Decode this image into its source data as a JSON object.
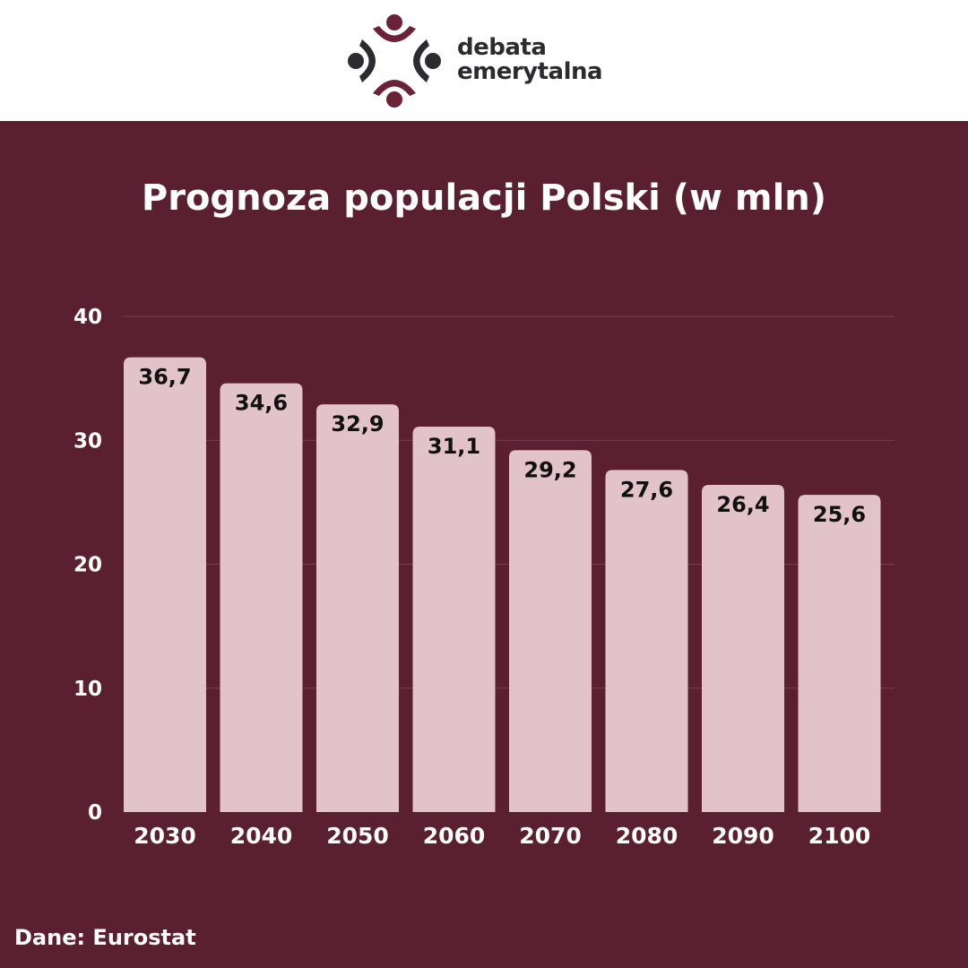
{
  "logo": {
    "line1": "debata",
    "line2": "emerytalna"
  },
  "colors": {
    "background": "#5a1f31",
    "header": "#ffffff",
    "bar": "#e2c3c9",
    "grid": "#7a3f50",
    "logo_dark": "#2b2b30",
    "logo_accent": "#6b2236"
  },
  "chart_data": {
    "type": "bar",
    "title": "Prognoza populacji Polski (w mln)",
    "categories": [
      "2030",
      "2040",
      "2050",
      "2060",
      "2070",
      "2080",
      "2090",
      "2100"
    ],
    "values": [
      36.7,
      34.6,
      32.9,
      31.1,
      29.2,
      27.6,
      26.4,
      25.6
    ],
    "data_labels": [
      "36,7",
      "34,6",
      "32,9",
      "31,1",
      "29,2",
      "27,6",
      "26,4",
      "25,6"
    ],
    "ylim": [
      0,
      40
    ],
    "yticks": [
      0,
      10,
      20,
      30,
      40
    ],
    "grid": true,
    "legend": "none"
  },
  "source": "Dane: Eurostat"
}
